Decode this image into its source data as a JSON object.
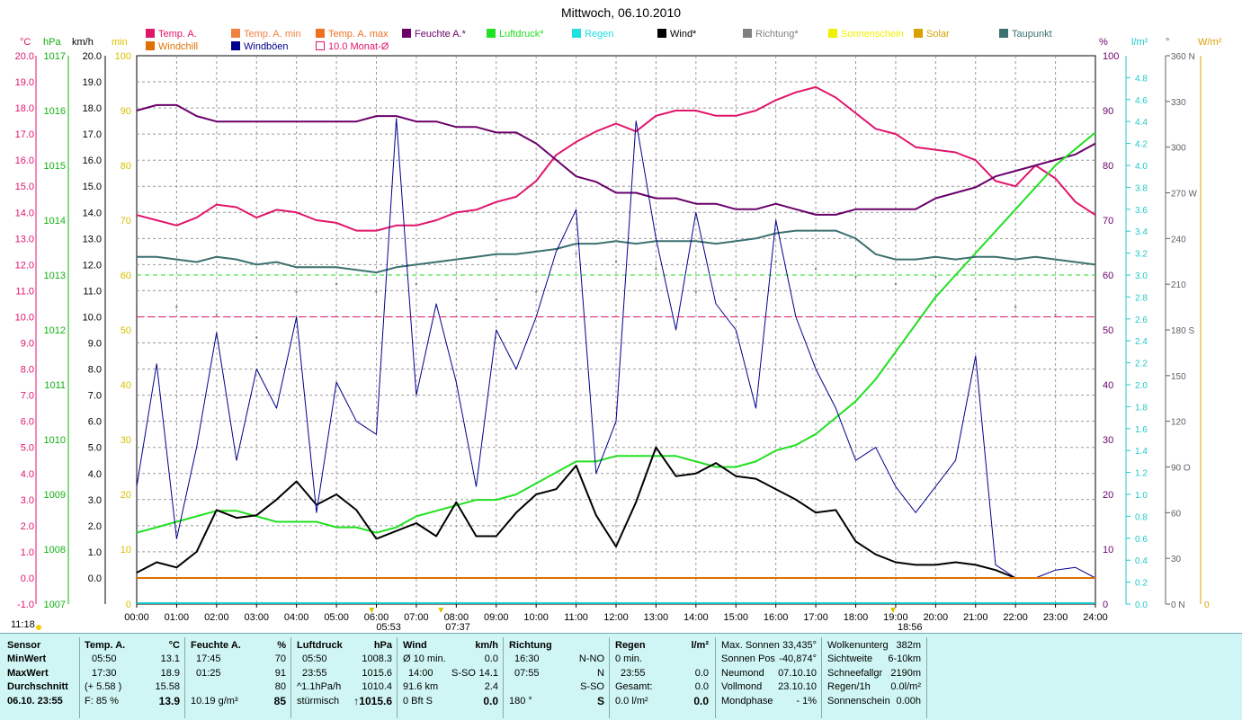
{
  "title": "Mittwoch, 06.10.2010",
  "legend": [
    {
      "label": "Temp. A.",
      "color": "#e0156c",
      "style": "fill"
    },
    {
      "label": "Temp. A. min",
      "color": "#f08040",
      "style": "fill"
    },
    {
      "label": "Temp. A. max",
      "color": "#f07020",
      "style": "fill"
    },
    {
      "label": "Feuchte A.*",
      "color": "#6a006a",
      "style": "fill"
    },
    {
      "label": "Luftdruck*",
      "color": "#22e022",
      "style": "fill"
    },
    {
      "label": "Regen",
      "color": "#20e0e0",
      "style": "fill"
    },
    {
      "label": "Wind*",
      "color": "#000000",
      "style": "fill"
    },
    {
      "label": "Richtung*",
      "color": "#808080",
      "style": "fill"
    },
    {
      "label": "Sonnenschein",
      "color": "#f0f000",
      "style": "fill"
    },
    {
      "label": "Solar",
      "color": "#d8a000",
      "style": "fill"
    },
    {
      "label": "Taupunkt",
      "color": "#3d7070",
      "style": "fill"
    },
    {
      "label": "Windchill",
      "color": "#e07000",
      "style": "fill"
    },
    {
      "label": "Windböen",
      "color": "#00008c",
      "style": "fill"
    },
    {
      "label": "10.0 Monat-Ø",
      "color": "#e0156c",
      "style": "outline"
    }
  ],
  "axis_titles": {
    "temp": "°C",
    "pressure": "hPa",
    "wind": "km/h",
    "sun": "min",
    "humidity": "%",
    "rain": "l/m²",
    "direction": "°",
    "solar": "W/m²"
  },
  "time_label": "11:18",
  "sun_events": {
    "rise": "05:53",
    "sunshine": "07:37",
    "set": "18:56"
  },
  "chart_data": {
    "type": "line",
    "x_ticks": [
      "00:00",
      "01:00",
      "02:00",
      "03:00",
      "04:00",
      "05:00",
      "06:00",
      "07:00",
      "08:00",
      "09:00",
      "10:00",
      "11:00",
      "12:00",
      "13:00",
      "14:00",
      "15:00",
      "16:00",
      "17:00",
      "18:00",
      "19:00",
      "20:00",
      "21:00",
      "22:00",
      "23:00",
      "24:00"
    ],
    "xlim": [
      0,
      24
    ],
    "ylim": [
      -1,
      20
    ],
    "axes": {
      "temp": {
        "ticks": [
          "20.0",
          "19.0",
          "18.0",
          "17.0",
          "16.0",
          "15.0",
          "14.0",
          "13.0",
          "12.0",
          "11.0",
          "10.0",
          "9.0",
          "8.0",
          "7.0",
          "6.0",
          "5.0",
          "4.0",
          "3.0",
          "2.0",
          "1.0",
          "0.0",
          "-1.0"
        ],
        "color": "#e0156c"
      },
      "pressure": {
        "ticks": [
          "1017",
          "1016",
          "1015",
          "1014",
          "1013",
          "1012",
          "1011",
          "1010",
          "1009",
          "1008",
          "1007"
        ],
        "color": "#11b011"
      },
      "wind": {
        "ticks": [
          "20.0",
          "19.0",
          "18.0",
          "17.0",
          "16.0",
          "15.0",
          "14.0",
          "13.0",
          "12.0",
          "11.0",
          "10.0",
          "9.0",
          "8.0",
          "7.0",
          "6.0",
          "5.0",
          "4.0",
          "3.0",
          "2.0",
          "1.0",
          "0.0"
        ],
        "color": "#000000"
      },
      "sun": {
        "ticks": [
          "100",
          "90",
          "80",
          "70",
          "60",
          "50",
          "40",
          "30",
          "20",
          "10",
          "0"
        ],
        "color": "#d8c000"
      },
      "humidity": {
        "ticks": [
          "100",
          "90",
          "80",
          "70",
          "60",
          "50",
          "40",
          "30",
          "20",
          "10",
          "0"
        ],
        "color": "#6a006a"
      },
      "rain": {
        "ticks": [
          "4.8",
          "4.6",
          "4.4",
          "4.2",
          "4.0",
          "3.8",
          "3.6",
          "3.4",
          "3.2",
          "3.0",
          "2.8",
          "2.6",
          "2.4",
          "2.2",
          "2.0",
          "1.8",
          "1.6",
          "1.4",
          "1.2",
          "1.0",
          "0.8",
          "0.6",
          "0.4",
          "0.2",
          "0.0"
        ],
        "color": "#20c8c8"
      },
      "direction": {
        "ticks": [
          "360 N",
          "330",
          "300",
          "270 W",
          "240",
          "210",
          "180 S",
          "150",
          "120",
          "90 O",
          "60",
          "30",
          "0 N"
        ],
        "color": "#606060"
      },
      "solar": {
        "ticks": [
          "0"
        ],
        "color": "#d8a000"
      }
    },
    "series": [
      {
        "name": "Temp. A.",
        "color": "#e0156c",
        "unit": "°C",
        "x": [
          0,
          0.5,
          1,
          1.5,
          2,
          2.5,
          3,
          3.5,
          4,
          4.5,
          5,
          5.5,
          6,
          6.5,
          7,
          7.5,
          8,
          8.5,
          9,
          9.5,
          10,
          10.5,
          11,
          11.5,
          12,
          12.5,
          13,
          13.5,
          14,
          14.5,
          15,
          15.5,
          16,
          16.5,
          17,
          17.5,
          18,
          18.5,
          19,
          19.5,
          20,
          20.5,
          21,
          21.5,
          22,
          22.5,
          23,
          23.5,
          24
        ],
        "y": [
          13.9,
          13.7,
          13.5,
          13.8,
          14.3,
          14.2,
          13.8,
          14.1,
          14.0,
          13.7,
          13.6,
          13.3,
          13.3,
          13.5,
          13.5,
          13.7,
          14.0,
          14.1,
          14.4,
          14.6,
          15.2,
          16.2,
          16.7,
          17.1,
          17.4,
          17.1,
          17.7,
          17.9,
          17.9,
          17.7,
          17.7,
          17.9,
          18.3,
          18.6,
          18.8,
          18.4,
          17.8,
          17.2,
          17.0,
          16.5,
          16.4,
          16.3,
          16.0,
          15.2,
          15.0,
          15.8,
          15.3,
          14.4,
          13.9
        ]
      },
      {
        "name": "Feuchte A.*",
        "color": "#6a006a",
        "unit": "%",
        "x": [
          0,
          0.5,
          1,
          1.5,
          2,
          2.5,
          3,
          3.5,
          4,
          4.5,
          5,
          5.5,
          6,
          6.5,
          7,
          7.5,
          8,
          8.5,
          9,
          9.5,
          10,
          10.5,
          11,
          11.5,
          12,
          12.5,
          13,
          13.5,
          14,
          14.5,
          15,
          15.5,
          16,
          16.5,
          17,
          17.5,
          18,
          18.5,
          19,
          19.5,
          20,
          20.5,
          21,
          21.5,
          22,
          22.5,
          23,
          23.5,
          24
        ],
        "y": [
          90,
          91,
          91,
          89,
          88,
          88,
          88,
          88,
          88,
          88,
          88,
          88,
          89,
          89,
          88,
          88,
          87,
          87,
          86,
          86,
          84,
          81,
          78,
          77,
          75,
          75,
          74,
          74,
          73,
          73,
          72,
          72,
          73,
          72,
          71,
          71,
          72,
          72,
          72,
          72,
          74,
          75,
          76,
          78,
          79,
          80,
          81,
          82,
          84
        ]
      },
      {
        "name": "Luftdruck*",
        "color": "#22e022",
        "unit": "hPa",
        "x": [
          0,
          0.5,
          1,
          1.5,
          2,
          2.5,
          3,
          3.5,
          4,
          4.5,
          5,
          5.5,
          6,
          6.5,
          7,
          7.5,
          8,
          8.5,
          9,
          9.5,
          10,
          10.5,
          11,
          11.5,
          12,
          12.5,
          13,
          13.5,
          14,
          14.5,
          15,
          15.5,
          16,
          16.5,
          17,
          17.5,
          18,
          18.5,
          19,
          19.5,
          20,
          20.5,
          21,
          21.5,
          22,
          22.5,
          23,
          23.5,
          24
        ],
        "y": [
          1008.3,
          1008.4,
          1008.5,
          1008.6,
          1008.7,
          1008.7,
          1008.6,
          1008.5,
          1008.5,
          1008.5,
          1008.4,
          1008.4,
          1008.3,
          1008.4,
          1008.6,
          1008.7,
          1008.8,
          1008.9,
          1008.9,
          1009.0,
          1009.2,
          1009.4,
          1009.6,
          1009.6,
          1009.7,
          1009.7,
          1009.7,
          1009.7,
          1009.6,
          1009.5,
          1009.5,
          1009.6,
          1009.8,
          1009.9,
          1010.1,
          1010.4,
          1010.7,
          1011.1,
          1011.6,
          1012.1,
          1012.6,
          1013.0,
          1013.4,
          1013.8,
          1014.2,
          1014.6,
          1015.0,
          1015.3,
          1015.6
        ]
      },
      {
        "name": "Taupunkt",
        "color": "#3d7070",
        "unit": "°C",
        "x": [
          0,
          0.5,
          1,
          1.5,
          2,
          2.5,
          3,
          3.5,
          4,
          4.5,
          5,
          5.5,
          6,
          6.5,
          7,
          7.5,
          8,
          8.5,
          9,
          9.5,
          10,
          10.5,
          11,
          11.5,
          12,
          12.5,
          13,
          13.5,
          14,
          14.5,
          15,
          15.5,
          16,
          16.5,
          17,
          17.5,
          18,
          18.5,
          19,
          19.5,
          20,
          20.5,
          21,
          21.5,
          22,
          22.5,
          23,
          23.5,
          24
        ],
        "y": [
          12.3,
          12.3,
          12.2,
          12.1,
          12.3,
          12.2,
          12.0,
          12.1,
          11.9,
          11.9,
          11.9,
          11.8,
          11.7,
          11.9,
          12.0,
          12.1,
          12.2,
          12.3,
          12.4,
          12.4,
          12.5,
          12.6,
          12.8,
          12.8,
          12.9,
          12.8,
          12.9,
          12.9,
          12.9,
          12.8,
          12.9,
          13.0,
          13.2,
          13.3,
          13.3,
          13.3,
          13.0,
          12.4,
          12.2,
          12.2,
          12.3,
          12.2,
          12.3,
          12.3,
          12.2,
          12.3,
          12.2,
          12.1,
          12.0
        ]
      },
      {
        "name": "Wind*",
        "color": "#000000",
        "unit": "km/h",
        "x": [
          0,
          0.5,
          1,
          1.5,
          2,
          2.5,
          3,
          3.5,
          4,
          4.5,
          5,
          5.5,
          6,
          6.5,
          7,
          7.5,
          8,
          8.5,
          9,
          9.5,
          10,
          10.5,
          11,
          11.5,
          12,
          12.5,
          13,
          13.5,
          14,
          14.5,
          15,
          15.5,
          16,
          16.5,
          17,
          17.5,
          18,
          18.5,
          19,
          19.5,
          20,
          20.5,
          21,
          21.5,
          22,
          22.5,
          23,
          23.5,
          24
        ],
        "y": [
          0.2,
          0.6,
          0.4,
          1.0,
          2.6,
          2.3,
          2.4,
          3.0,
          3.7,
          2.8,
          3.2,
          2.6,
          1.5,
          1.8,
          2.1,
          1.6,
          2.9,
          1.6,
          1.6,
          2.5,
          3.2,
          3.4,
          4.3,
          2.4,
          1.2,
          2.9,
          5.0,
          3.9,
          4.0,
          4.4,
          3.9,
          3.8,
          3.4,
          3.0,
          2.5,
          2.6,
          1.4,
          0.9,
          0.6,
          0.5,
          0.5,
          0.6,
          0.5,
          0.3,
          0.0,
          0.0,
          0.0,
          0.0,
          0.0
        ]
      },
      {
        "name": "Windböen",
        "color": "#00008c",
        "unit": "km/h",
        "x": [
          0,
          0.5,
          1,
          1.5,
          2,
          2.5,
          3,
          3.5,
          4,
          4.5,
          5,
          5.5,
          6,
          6.5,
          7,
          7.5,
          8,
          8.5,
          9,
          9.5,
          10,
          10.5,
          11,
          11.5,
          12,
          12.5,
          13,
          13.5,
          14,
          14.5,
          15,
          15.5,
          16,
          16.5,
          17,
          17.5,
          18,
          18.5,
          19,
          19.5,
          20,
          20.5,
          21,
          21.5,
          22,
          22.5,
          23,
          23.5,
          24
        ],
        "y": [
          3.5,
          8.2,
          1.5,
          5.0,
          9.4,
          4.5,
          8.0,
          6.5,
          10.0,
          2.5,
          7.5,
          6.0,
          5.5,
          17.6,
          7.0,
          10.5,
          7.5,
          3.5,
          9.5,
          8.0,
          10.0,
          12.5,
          14.1,
          4.0,
          6.0,
          17.5,
          13.0,
          9.5,
          14.0,
          10.5,
          9.5,
          6.5,
          13.7,
          10.0,
          8.0,
          6.5,
          4.5,
          5.0,
          3.5,
          2.5,
          3.5,
          4.5,
          8.5,
          0.5,
          0.0,
          0.0,
          0.3,
          0.4,
          0.0
        ]
      },
      {
        "name": "Richtung*",
        "color": "#808080",
        "unit": "°",
        "x": [
          0,
          1,
          2,
          3,
          4,
          5,
          6,
          7,
          8,
          9,
          10,
          11,
          12,
          13,
          14,
          15,
          16,
          17,
          18,
          19,
          20,
          21,
          22,
          23
        ],
        "y": [
          200,
          195,
          190,
          175,
          205,
          210,
          205,
          210,
          200,
          200,
          205,
          230,
          225,
          220,
          205,
          200,
          225,
          220,
          215,
          210,
          215,
          200,
          195,
          190
        ]
      },
      {
        "name": "Windchill",
        "color": "#e07000",
        "unit": "°C",
        "x": [
          0,
          24
        ],
        "y": [
          0.0,
          0.0
        ]
      },
      {
        "name": "10.0 Monat-Ø",
        "color": "#e0156c",
        "unit": "°C",
        "x": [
          0,
          24
        ],
        "y": [
          10.0,
          10.0
        ]
      }
    ],
    "reference_lines": [
      {
        "name": "pressure-ref",
        "color": "#22e022",
        "axis": "pressure",
        "value": 1013.0
      }
    ]
  },
  "stats": {
    "columns": [
      {
        "header": "Sensor",
        "rows": [
          "MinWert",
          "MaxWert",
          "Durchschnitt",
          "06.10. 23:55"
        ]
      },
      {
        "header": "Temp. A.",
        "unit": "°C",
        "rows": [
          [
            "05:50",
            "13.1"
          ],
          [
            "17:30",
            "18.9"
          ],
          [
            "(+ 5.58 )",
            "15.58"
          ],
          [
            "F: 85 %",
            "13.9"
          ]
        ]
      },
      {
        "header": "Feuchte A.",
        "unit": "%",
        "rows": [
          [
            "17:45",
            "70"
          ],
          [
            "01:25",
            "91"
          ],
          [
            "",
            "80"
          ],
          [
            "10.19 g/m³",
            "85"
          ]
        ]
      },
      {
        "header": "Luftdruck",
        "unit": "hPa",
        "rows": [
          [
            "05:50",
            "1008.3"
          ],
          [
            "23:55",
            "1015.6"
          ],
          [
            "^1.1hPa/h",
            "1010.4"
          ],
          [
            "stürmisch",
            "↑1015.6"
          ]
        ]
      },
      {
        "header": "Wind",
        "unit": "km/h",
        "rows": [
          [
            "Ø 10 min.",
            "",
            "0.0"
          ],
          [
            "14:00",
            "S-SO",
            "14.1"
          ],
          [
            "91.6 km",
            "",
            "2.4"
          ],
          [
            "0 Bft S",
            "",
            "0.0"
          ]
        ]
      },
      {
        "header": "Richtung",
        "unit": "",
        "rows": [
          [
            "16:30",
            "N-NO"
          ],
          [
            "07:55",
            "N"
          ],
          [
            "",
            "S-SO"
          ],
          [
            "180 °",
            "S"
          ]
        ]
      },
      {
        "header": "Regen",
        "unit": "l/m²",
        "rows": [
          [
            "0 min.",
            ""
          ],
          [
            "23:55",
            "0.0"
          ],
          [
            "Gesamt:",
            "0.0"
          ],
          [
            "0.0 l/m²",
            "0.0"
          ]
        ]
      },
      {
        "header": "",
        "unit": "",
        "rows": [
          [
            "Max. Sonnen",
            "33,435°"
          ],
          [
            "Sonnen Pos",
            "-40,874°"
          ],
          [
            "Neumond",
            "07.10.10"
          ],
          [
            "Vollmond",
            "23.10.10"
          ],
          [
            "Mondphase",
            "- 1%"
          ]
        ]
      },
      {
        "header": "",
        "unit": "",
        "rows": [
          [
            "Wolkenunterg",
            "382m"
          ],
          [
            "Sichtweite",
            "6-10km"
          ],
          [
            "Schneefallgr",
            "2190m"
          ],
          [
            "Regen/1h",
            "0.0l/m²"
          ],
          [
            "Sonnenschein",
            "0.00h"
          ]
        ]
      }
    ]
  }
}
